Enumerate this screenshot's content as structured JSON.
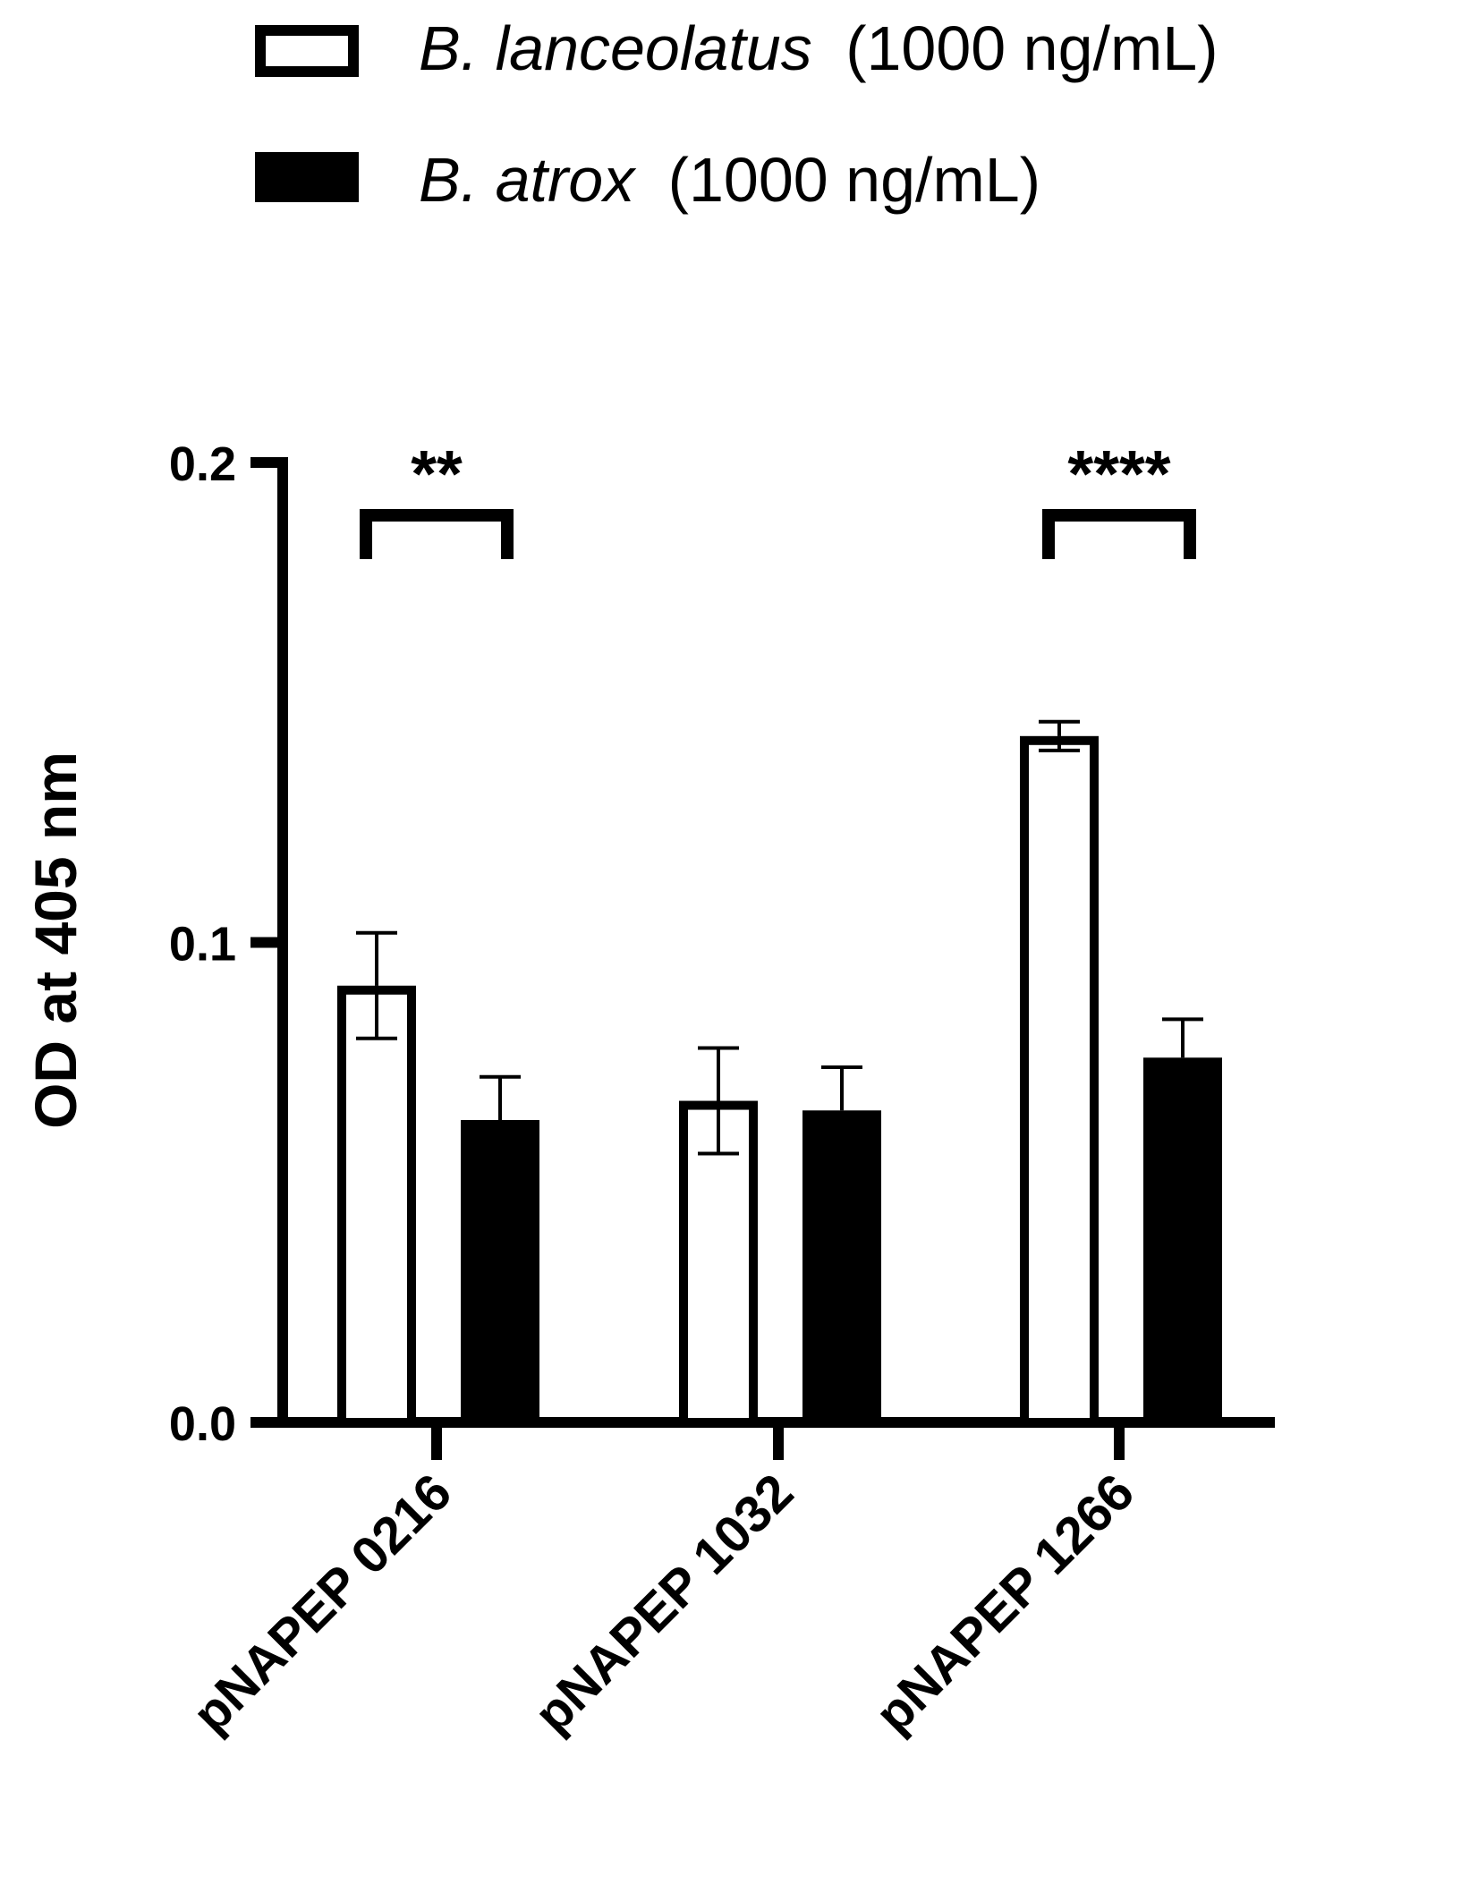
{
  "chart_data": {
    "type": "bar",
    "categories": [
      "pNAPEP 0216",
      "pNAPEP 1032",
      "pNAPEP 1266"
    ],
    "series": [
      {
        "species": "B. lanceolatus",
        "conc": "(1000 ng/mL)",
        "fill": "#ffffff",
        "stroke": "#000000",
        "values": [
          0.091,
          0.067,
          0.143
        ],
        "errors": [
          0.011,
          0.011,
          0.003
        ]
      },
      {
        "species": "B. atrox",
        "conc": "(1000 ng/mL)",
        "fill": "#000000",
        "stroke": "#000000",
        "values": [
          0.063,
          0.065,
          0.076
        ],
        "errors": [
          0.009,
          0.009,
          0.008
        ]
      }
    ],
    "ylabel": "OD at 405 nm",
    "ylim": [
      0,
      0.2
    ],
    "yticks": [
      "0.0",
      "0.1",
      "0.2"
    ],
    "ytick_values": [
      0,
      0.1,
      0.2
    ],
    "legend_position": "top",
    "grid": false,
    "significance": [
      {
        "category_index": 0,
        "label": "**"
      },
      {
        "category_index": 2,
        "label": "****"
      }
    ]
  }
}
